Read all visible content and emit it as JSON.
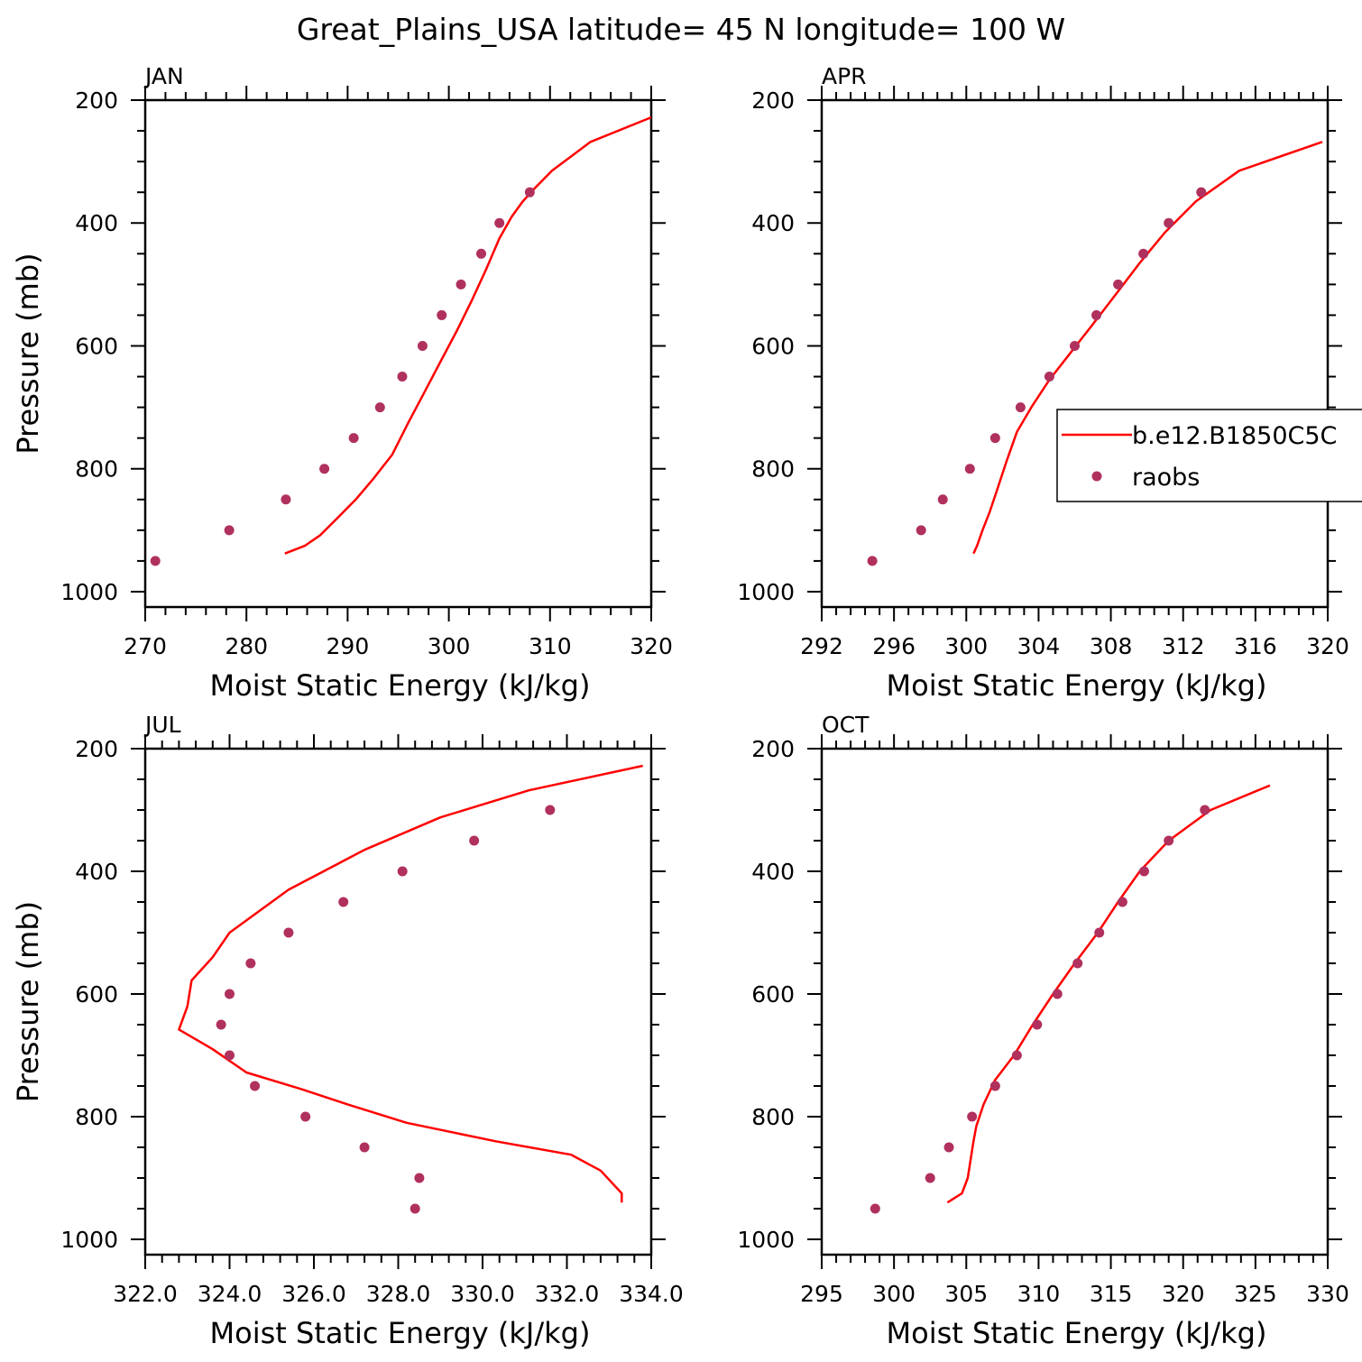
{
  "figure": {
    "title": "Great_Plains_USA  latitude= 45 N longitude= 100 W"
  },
  "legend": {
    "line_label": "b.e12.B1850C5C",
    "dot_label": "raobs"
  },
  "colors": {
    "model_line": "#ff0000",
    "raobs_dots": "#b0305e"
  },
  "chart_data": [
    {
      "type": "line",
      "title": "JAN",
      "xlabel": "Moist Static Energy (kJ/kg)",
      "ylabel": "Pressure (mb)",
      "xlim": [
        270,
        320
      ],
      "ylim": [
        1025,
        200
      ],
      "x_ticks": [
        "270",
        "280",
        "290",
        "300",
        "310",
        "320"
      ],
      "y_ticks": [
        "200",
        "400",
        "600",
        "800",
        "1000"
      ],
      "series": [
        {
          "name": "b.e12.B1850C5C",
          "style": "line",
          "x": [
            283.8,
            285.8,
            287.3,
            289.0,
            290.8,
            292.6,
            294.4,
            296.0,
            297.6,
            299.2,
            300.8,
            302.3,
            303.7,
            305.0,
            306.2,
            307.3,
            308.4,
            310.2,
            314.0,
            320.0
          ],
          "y": [
            938,
            925,
            908,
            880,
            850,
            815,
            777,
            725,
            675,
            625,
            575,
            525,
            475,
            425,
            390,
            365,
            345,
            315,
            268,
            228
          ]
        },
        {
          "name": "raobs",
          "style": "markers",
          "x": [
            271.0,
            278.3,
            283.9,
            287.7,
            290.6,
            293.2,
            295.4,
            297.4,
            299.3,
            301.2,
            303.2,
            305.0,
            308.0
          ],
          "y": [
            950,
            900,
            850,
            800,
            750,
            700,
            650,
            600,
            550,
            500,
            450,
            400,
            350
          ]
        }
      ]
    },
    {
      "type": "line",
      "title": "APR",
      "xlabel": "Moist Static Energy (kJ/kg)",
      "ylabel": "",
      "xlim": [
        292,
        320
      ],
      "ylim": [
        1025,
        200
      ],
      "x_ticks": [
        "292",
        "296",
        "300",
        "304",
        "308",
        "312",
        "316",
        "320"
      ],
      "y_ticks": [
        "200",
        "400",
        "600",
        "800",
        "1000"
      ],
      "series": [
        {
          "name": "b.e12.B1850C5C",
          "style": "line",
          "x": [
            300.4,
            300.6,
            300.9,
            301.3,
            301.7,
            302.2,
            302.8,
            303.6,
            304.6,
            305.8,
            307.0,
            308.3,
            309.6,
            311.0,
            312.7,
            315.1,
            319.7
          ],
          "y": [
            938,
            925,
            900,
            870,
            835,
            790,
            740,
            700,
            655,
            610,
            565,
            515,
            465,
            415,
            365,
            315,
            268
          ]
        },
        {
          "name": "raobs",
          "style": "markers",
          "x": [
            294.8,
            297.5,
            298.7,
            300.2,
            301.6,
            303.0,
            304.6,
            306.0,
            307.2,
            308.4,
            309.8,
            311.2,
            313.0
          ],
          "y": [
            950,
            900,
            850,
            800,
            750,
            700,
            650,
            600,
            550,
            500,
            450,
            400,
            350
          ]
        }
      ]
    },
    {
      "type": "line",
      "title": "JUL",
      "xlabel": "Moist Static Energy (kJ/kg)",
      "ylabel": "Pressure (mb)",
      "xlim": [
        322.0,
        334.0
      ],
      "ylim": [
        1025,
        200
      ],
      "x_ticks": [
        "322.0",
        "324.0",
        "326.0",
        "328.0",
        "330.0",
        "332.0",
        "334.0"
      ],
      "y_ticks": [
        "200",
        "400",
        "600",
        "800",
        "1000"
      ],
      "series": [
        {
          "name": "b.e12.B1850C5C",
          "style": "line",
          "x": [
            333.3,
            333.3,
            332.8,
            332.1,
            330.3,
            328.2,
            326.8,
            325.7,
            324.4,
            323.6,
            322.8,
            323.0,
            323.1,
            323.6,
            324.0,
            325.4,
            327.2,
            329.0,
            331.1,
            333.8
          ],
          "y": [
            940,
            925,
            888,
            862,
            840,
            810,
            780,
            755,
            728,
            690,
            658,
            620,
            578,
            540,
            500,
            430,
            365,
            312,
            268,
            228
          ]
        },
        {
          "name": "raobs",
          "style": "markers",
          "x": [
            328.4,
            328.5,
            327.2,
            325.8,
            324.6,
            324.0,
            323.8,
            324.0,
            324.5,
            325.4,
            326.7,
            328.1,
            329.8,
            331.6
          ],
          "y": [
            950,
            900,
            850,
            800,
            750,
            700,
            650,
            600,
            550,
            500,
            450,
            400,
            350,
            300
          ]
        }
      ]
    },
    {
      "type": "line",
      "title": "OCT",
      "xlabel": "Moist Static Energy (kJ/kg)",
      "ylabel": "",
      "xlim": [
        295,
        330
      ],
      "ylim": [
        1025,
        200
      ],
      "x_ticks": [
        "295",
        "300",
        "305",
        "310",
        "315",
        "320",
        "325",
        "330"
      ],
      "y_ticks": [
        "200",
        "400",
        "600",
        "800",
        "1000"
      ],
      "series": [
        {
          "name": "b.e12.B1850C5C",
          "style": "line",
          "x": [
            303.7,
            304.7,
            305.1,
            305.3,
            305.5,
            305.7,
            306.2,
            307.0,
            308.3,
            309.6,
            311.0,
            312.5,
            314.1,
            315.5,
            317.0,
            319.0,
            321.9,
            326.0
          ],
          "y": [
            940,
            925,
            900,
            870,
            840,
            815,
            780,
            740,
            700,
            650,
            600,
            550,
            500,
            450,
            400,
            350,
            300,
            260
          ]
        },
        {
          "name": "raobs",
          "style": "markers",
          "x": [
            298.7,
            302.5,
            303.8,
            305.4,
            307.0,
            308.5,
            309.9,
            311.3,
            312.7,
            314.2,
            315.8,
            317.3,
            319.0,
            321.5
          ],
          "y": [
            950,
            900,
            850,
            800,
            750,
            700,
            650,
            600,
            550,
            500,
            450,
            400,
            350,
            300
          ]
        }
      ]
    }
  ]
}
